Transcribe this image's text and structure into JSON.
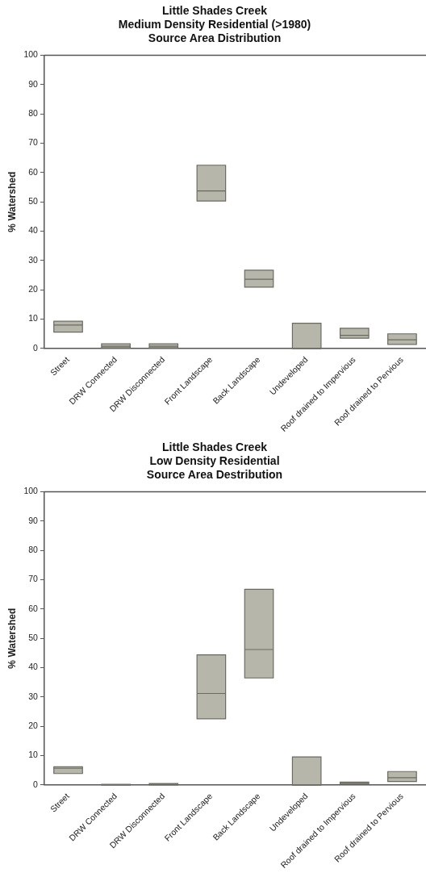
{
  "chart_data": [
    {
      "type": "box",
      "title": "Little Shades Creek\nMedium Density Residential (>1980)\nSource Area Distribution",
      "ylabel": "% Watershed",
      "categories": [
        "Street",
        "DRW Connected",
        "DRW Disconnected",
        "Front Landscape",
        "Back Landscape",
        "Undeveloped",
        "Roof drained to Impervious",
        "Roof drained to Pervious"
      ],
      "color": "#b6b6aa",
      "boxes": [
        {
          "low": 5.6,
          "q1": 5.6,
          "median": 8.0,
          "q3": 9.3,
          "high": 9.3
        },
        {
          "low": 0.2,
          "q1": 0.2,
          "median": 0.8,
          "q3": 1.6,
          "high": 1.6
        },
        {
          "low": 0.2,
          "q1": 0.2,
          "median": 0.8,
          "q3": 1.6,
          "high": 1.6
        },
        {
          "low": 50.3,
          "q1": 50.3,
          "median": 53.7,
          "q3": 62.5,
          "high": 62.5
        },
        {
          "low": 20.9,
          "q1": 20.9,
          "median": 23.6,
          "q3": 26.7,
          "high": 26.7
        },
        {
          "low": 0,
          "q1": 0,
          "median": 0,
          "q3": 8.6,
          "high": 8.6
        },
        {
          "low": 3.5,
          "q1": 3.5,
          "median": 4.5,
          "q3": 6.9,
          "high": 6.9
        },
        {
          "low": 1.4,
          "q1": 1.4,
          "median": 3.0,
          "q3": 5.0,
          "high": 5.0
        }
      ],
      "ylim": [
        0,
        100
      ],
      "yticks": [
        0,
        10,
        20,
        30,
        40,
        50,
        60,
        70,
        80,
        90,
        100
      ],
      "grid": false,
      "legend": false
    },
    {
      "type": "box",
      "title": "Little Shades Creek\nLow Density Residential\nSource Area Destribution",
      "ylabel": "% Watershed",
      "categories": [
        "Street",
        "DRW Connected",
        "DRW Disconnected",
        "Front Landscape",
        "Back Landscape",
        "Undeveloped",
        "Roof drained to Impervious",
        "Roof drained to Pervious"
      ],
      "color": "#b6b6aa",
      "boxes": [
        {
          "low": 3.9,
          "q1": 3.9,
          "median": 5.7,
          "q3": 6.2,
          "high": 6.2
        },
        {
          "low": 0,
          "q1": 0,
          "median": 0.1,
          "q3": 0.2,
          "high": 0.2
        },
        {
          "low": 0,
          "q1": 0,
          "median": 0.3,
          "q3": 0.5,
          "high": 0.5
        },
        {
          "low": 22.6,
          "q1": 22.6,
          "median": 31.2,
          "q3": 44.4,
          "high": 44.4
        },
        {
          "low": 36.5,
          "q1": 36.5,
          "median": 46.2,
          "q3": 66.7,
          "high": 66.7
        },
        {
          "low": 0,
          "q1": 0,
          "median": 0,
          "q3": 9.6,
          "high": 9.6
        },
        {
          "low": 0.3,
          "q1": 0.3,
          "median": 0.6,
          "q3": 1.0,
          "high": 1.0
        },
        {
          "low": 1.2,
          "q1": 1.2,
          "median": 2.5,
          "q3": 4.6,
          "high": 4.6
        }
      ],
      "ylim": [
        0,
        100
      ],
      "yticks": [
        0,
        10,
        20,
        30,
        40,
        50,
        60,
        70,
        80,
        90,
        100
      ],
      "grid": false,
      "legend": false
    }
  ]
}
